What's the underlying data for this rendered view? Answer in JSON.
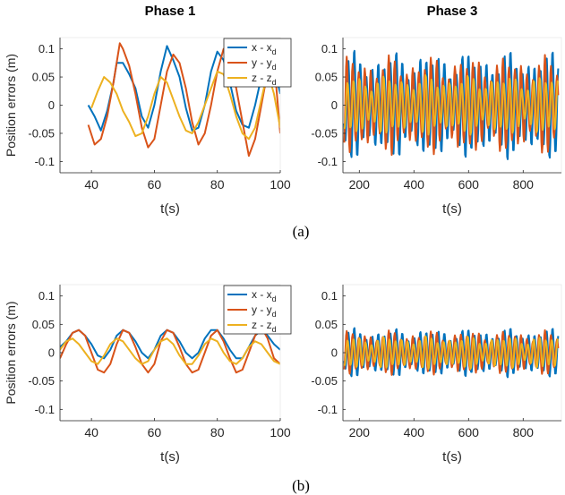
{
  "colors": {
    "x": "#0072BD",
    "y": "#D95319",
    "z": "#EDB120",
    "axis": "#262626"
  },
  "ylabel": "Position errors (m)",
  "chart_data": [
    {
      "type": "line",
      "panel": "a",
      "column": "left",
      "title": "Phase 1",
      "xlabel": "t(s)",
      "ylabel": "Position errors (m)",
      "xlim": [
        30,
        100
      ],
      "ylim": [
        -0.12,
        0.12
      ],
      "xticks": [
        40,
        60,
        80,
        100
      ],
      "yticks": [
        -0.1,
        -0.05,
        0,
        0.05,
        0.1
      ],
      "xticklabels": [
        "40",
        "60",
        "80",
        "100"
      ],
      "yticklabels": [
        "-0.1",
        "-0.05",
        "0",
        "0.05",
        "0.1"
      ],
      "legend": "top-right",
      "series": [
        {
          "name": "x - x",
          "sub": "d",
          "color": "#0072BD",
          "x": [
            39,
            41,
            43,
            45,
            47,
            48,
            50,
            52,
            54,
            56,
            58,
            60,
            62,
            64,
            66,
            68,
            70,
            72,
            74,
            76,
            78,
            80,
            82,
            84,
            86,
            88,
            90,
            92,
            94,
            96,
            98,
            100
          ],
          "y": [
            0.0,
            -0.02,
            -0.045,
            -0.01,
            0.04,
            0.075,
            0.075,
            0.055,
            0.03,
            -0.02,
            -0.04,
            0.0,
            0.06,
            0.105,
            0.08,
            0.05,
            -0.005,
            -0.045,
            -0.04,
            0.0,
            0.06,
            0.095,
            0.08,
            0.04,
            -0.01,
            -0.035,
            -0.04,
            0.0,
            0.05,
            0.09,
            0.07,
            0.02
          ]
        },
        {
          "name": "y - y",
          "sub": "d",
          "color": "#D95319",
          "x": [
            39,
            41,
            43,
            45,
            47,
            49,
            50,
            52,
            54,
            56,
            58,
            60,
            62,
            64,
            66,
            68,
            70,
            72,
            74,
            76,
            78,
            80,
            82,
            84,
            86,
            88,
            90,
            92,
            94,
            96,
            98,
            100
          ],
          "y": [
            -0.035,
            -0.07,
            -0.06,
            -0.02,
            0.04,
            0.11,
            0.1,
            0.07,
            0.02,
            -0.04,
            -0.075,
            -0.06,
            0.0,
            0.06,
            0.09,
            0.075,
            0.03,
            -0.03,
            -0.07,
            -0.05,
            0.0,
            0.06,
            0.1,
            0.08,
            0.03,
            -0.03,
            -0.09,
            -0.06,
            0.0,
            0.06,
            0.08,
            -0.05
          ]
        },
        {
          "name": "z - z",
          "sub": "d",
          "color": "#EDB120",
          "x": [
            40,
            42,
            44,
            46,
            48,
            50,
            52,
            54,
            56,
            58,
            60,
            62,
            64,
            66,
            68,
            70,
            72,
            74,
            76,
            78,
            80,
            82,
            84,
            86,
            88,
            90,
            92,
            94,
            96,
            98,
            100
          ],
          "y": [
            -0.005,
            0.025,
            0.05,
            0.04,
            0.02,
            -0.01,
            -0.03,
            -0.055,
            -0.05,
            -0.02,
            0.02,
            0.05,
            0.04,
            0.01,
            -0.02,
            -0.045,
            -0.05,
            -0.03,
            0.0,
            0.03,
            0.06,
            0.055,
            0.02,
            -0.02,
            -0.05,
            -0.06,
            -0.04,
            0.01,
            0.06,
            0.02,
            -0.04
          ]
        }
      ]
    },
    {
      "type": "line",
      "panel": "a",
      "column": "right",
      "title": "Phase 3",
      "xlabel": "t(s)",
      "xlim": [
        140,
        940
      ],
      "ylim": [
        -0.12,
        0.12
      ],
      "xticks": [
        200,
        400,
        600,
        800
      ],
      "yticks": [
        -0.1,
        -0.05,
        0,
        0.05,
        0.1
      ],
      "xticklabels": [
        "200",
        "400",
        "600",
        "800"
      ],
      "yticklabels": [
        "-0.1",
        "-0.05",
        "0",
        "0.05",
        "0.1"
      ],
      "oscillation": {
        "t_start": 145,
        "t_end": 930,
        "period": 22,
        "series": [
          {
            "name": "x - x",
            "sub": "d",
            "color": "#0072BD",
            "amplitude": 0.1,
            "phase": 0.0
          },
          {
            "name": "y - y",
            "sub": "d",
            "color": "#D95319",
            "amplitude": 0.09,
            "phase": 1.6
          },
          {
            "name": "z - z",
            "sub": "d",
            "color": "#EDB120",
            "amplitude": 0.055,
            "phase": 0.8
          }
        ]
      }
    },
    {
      "type": "line",
      "panel": "b",
      "column": "left",
      "xlabel": "t(s)",
      "ylabel": "Position errors (m)",
      "xlim": [
        30,
        100
      ],
      "ylim": [
        -0.12,
        0.12
      ],
      "xticks": [
        40,
        60,
        80,
        100
      ],
      "yticks": [
        -0.1,
        -0.05,
        0,
        0.05,
        0.1
      ],
      "xticklabels": [
        "40",
        "60",
        "80",
        "100"
      ],
      "yticklabels": [
        "-0.1",
        "-0.05",
        "0",
        "0.05",
        "0.1"
      ],
      "legend": "top-right",
      "series": [
        {
          "name": "x - x",
          "sub": "d",
          "color": "#0072BD",
          "x": [
            30,
            32,
            34,
            36,
            38,
            40,
            42,
            44,
            46,
            48,
            50,
            52,
            54,
            56,
            58,
            60,
            62,
            64,
            66,
            68,
            70,
            72,
            74,
            76,
            78,
            80,
            82,
            84,
            86,
            88,
            90,
            92,
            94,
            96,
            98,
            100
          ],
          "y": [
            0.01,
            0.02,
            0.035,
            0.04,
            0.03,
            0.015,
            -0.005,
            -0.01,
            0.005,
            0.03,
            0.04,
            0.035,
            0.02,
            0.0,
            -0.01,
            0.005,
            0.03,
            0.04,
            0.035,
            0.02,
            0.0,
            -0.01,
            0.0,
            0.025,
            0.04,
            0.04,
            0.025,
            0.005,
            -0.01,
            -0.01,
            0.01,
            0.03,
            0.04,
            0.03,
            0.015,
            0.005
          ]
        },
        {
          "name": "y - y",
          "sub": "d",
          "color": "#D95319",
          "x": [
            30,
            32,
            34,
            36,
            38,
            40,
            42,
            44,
            46,
            48,
            50,
            52,
            54,
            56,
            58,
            60,
            62,
            64,
            66,
            68,
            70,
            72,
            74,
            76,
            78,
            80,
            82,
            84,
            86,
            88,
            90,
            92,
            94,
            96,
            98,
            100
          ],
          "y": [
            -0.01,
            0.015,
            0.035,
            0.04,
            0.03,
            0.0,
            -0.03,
            -0.035,
            -0.02,
            0.015,
            0.04,
            0.035,
            0.01,
            -0.02,
            -0.035,
            -0.02,
            0.02,
            0.04,
            0.035,
            0.01,
            -0.02,
            -0.035,
            -0.03,
            0.0,
            0.03,
            0.04,
            0.02,
            -0.01,
            -0.035,
            -0.03,
            0.0,
            0.03,
            0.045,
            0.025,
            -0.01,
            -0.02
          ]
        },
        {
          "name": "z - z",
          "sub": "d",
          "color": "#EDB120",
          "x": [
            30,
            32,
            34,
            36,
            38,
            40,
            42,
            44,
            46,
            48,
            50,
            52,
            54,
            56,
            58,
            60,
            62,
            64,
            66,
            68,
            70,
            72,
            74,
            76,
            78,
            80,
            82,
            84,
            86,
            88,
            90,
            92,
            94,
            96,
            98,
            100
          ],
          "y": [
            0.005,
            0.02,
            0.025,
            0.015,
            0.0,
            -0.015,
            -0.02,
            -0.005,
            0.015,
            0.025,
            0.02,
            0.005,
            -0.01,
            -0.02,
            -0.015,
            0.005,
            0.02,
            0.025,
            0.015,
            -0.005,
            -0.02,
            -0.02,
            -0.005,
            0.015,
            0.025,
            0.02,
            0.0,
            -0.015,
            -0.02,
            -0.01,
            0.01,
            0.02,
            0.015,
            0.0,
            -0.015,
            -0.02
          ]
        }
      ]
    },
    {
      "type": "line",
      "panel": "b",
      "column": "right",
      "xlabel": "t(s)",
      "xlim": [
        140,
        940
      ],
      "ylim": [
        -0.12,
        0.12
      ],
      "xticks": [
        200,
        400,
        600,
        800
      ],
      "yticks": [
        -0.1,
        -0.05,
        0,
        0.05,
        0.1
      ],
      "xticklabels": [
        "200",
        "400",
        "600",
        "800"
      ],
      "yticklabels": [
        "-0.1",
        "-0.05",
        "0",
        "0.05",
        "0.1"
      ],
      "oscillation": {
        "t_start": 145,
        "t_end": 930,
        "period": 22,
        "series": [
          {
            "name": "x - x",
            "sub": "d",
            "color": "#0072BD",
            "amplitude": 0.045,
            "phase": 0.0
          },
          {
            "name": "y - y",
            "sub": "d",
            "color": "#D95319",
            "amplitude": 0.04,
            "phase": 1.6
          },
          {
            "name": "z - z",
            "sub": "d",
            "color": "#EDB120",
            "amplitude": 0.03,
            "phase": 0.8
          }
        ]
      }
    }
  ],
  "captions": {
    "a": "(a)",
    "b": "(b)"
  }
}
